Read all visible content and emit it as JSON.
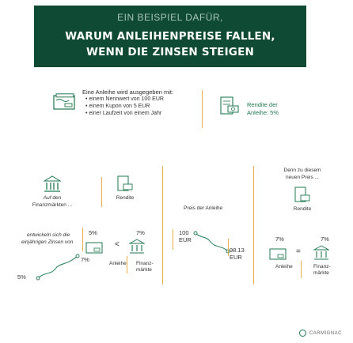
{
  "header": {
    "kicker": "EIN BEISPIEL DAFÜR,",
    "title_line1": "WARUM ANLEIHENPREISE FALLEN,",
    "title_line2": "WENN DIE ZINSEN STEIGEN"
  },
  "intro": {
    "heading": "Eine Anleihe wird ausgegeben mit:",
    "bullets": [
      "• einem Nennwert von 100 EUR",
      "• einem Kupon von 5 EUR",
      "• einer Laufzeit von einem Jahr"
    ],
    "yield_label_line1": "Rendite der",
    "yield_label_line2": "Anleihe: 5%"
  },
  "scenario": {
    "left_caption_line1": "Auf den",
    "left_caption_line2": "Finanzmärkten ...",
    "center_caption": "Rendite",
    "develop_line1": "entwickeln sich die",
    "develop_line2": "einjährigen Zinsen von",
    "pct_5": "5%",
    "pct_7": "7%",
    "lt_sign": "<",
    "label_anleihe": "Anleihe",
    "label_fin_line1": "Finanz-",
    "label_fin_line2": "märkte",
    "chart_from": "5%",
    "chart_to": "7%"
  },
  "price": {
    "caption": "Preis der Anleihe",
    "from_value": "100",
    "from_unit": "EUR",
    "to_value": "98.13",
    "to_unit": "EUR"
  },
  "result": {
    "caption_line1": "Denn zu diesem",
    "caption_line2": "neuen Preis ...",
    "rendite": "Rendite",
    "pct_left": "7%",
    "pct_right": "7%",
    "eq_sign": "=",
    "label_anleihe": "Anleihe",
    "label_fin_line1": "Finanz-",
    "label_fin_line2": "märkte"
  },
  "footer": {
    "brand": "CARMIGNAC"
  },
  "colors": {
    "header_bg": "#0f4a34",
    "accent": "#e9b04a",
    "icon_green": "#1e7a4e"
  }
}
